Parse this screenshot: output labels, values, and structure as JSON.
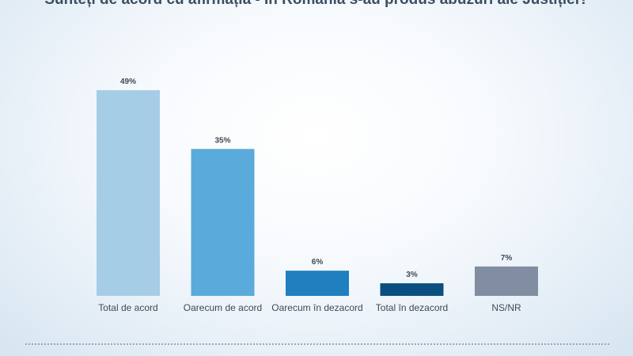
{
  "chart_data": {
    "type": "bar",
    "title": "Sunteți de acord cu afirmația - În România s-au produs abuzuri ale Justiției?",
    "categories": [
      "Total de acord",
      "Oarecum de acord",
      "Oarecum în dezacord",
      "Total în dezacord",
      "NS/NR"
    ],
    "values": [
      49,
      35,
      6,
      3,
      7
    ],
    "data_labels": [
      "49%",
      "35%",
      "6%",
      "3%",
      "7%"
    ],
    "colors": [
      "#a6cde6",
      "#5aaadb",
      "#1f7fbf",
      "#0b4f80",
      "#818da0"
    ],
    "xlabel": "",
    "ylabel": "",
    "ylim": [
      0,
      49
    ],
    "grid": false,
    "legend": "none"
  }
}
